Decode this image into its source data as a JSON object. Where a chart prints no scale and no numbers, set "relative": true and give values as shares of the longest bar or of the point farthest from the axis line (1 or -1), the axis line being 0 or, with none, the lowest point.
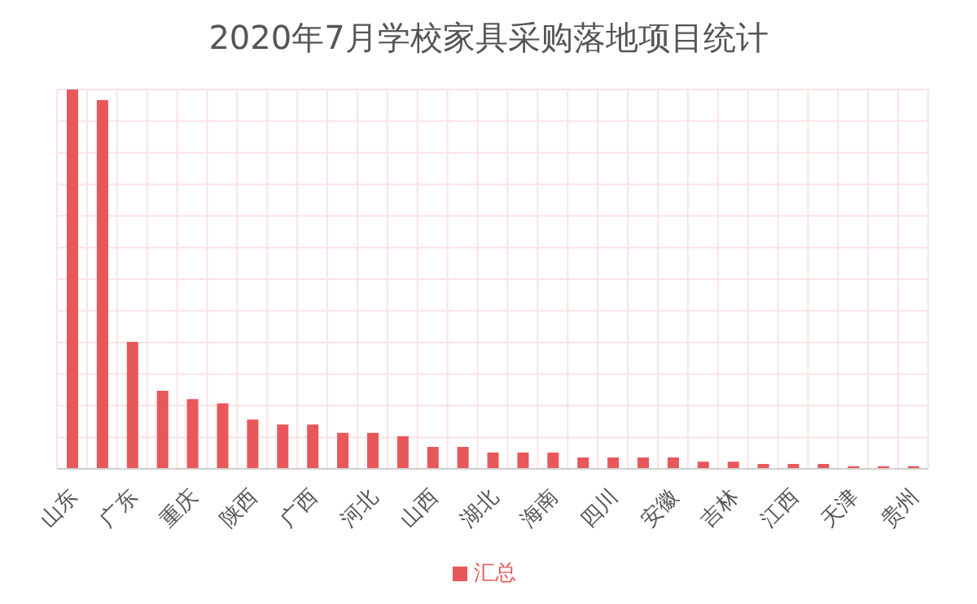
{
  "chart_data": {
    "type": "bar",
    "title": "2020年7月学校家具采购落地项目统计",
    "relative": true,
    "categories": [
      "山东",
      null,
      "广东",
      null,
      "重庆",
      null,
      "陕西",
      null,
      "广西",
      null,
      "河北",
      null,
      "山西",
      null,
      "湖北",
      null,
      "海南",
      null,
      "四川",
      null,
      "安徽",
      null,
      "吉林",
      null,
      "江西",
      null,
      "天津",
      null,
      "贵州"
    ],
    "series": [
      {
        "name": "汇总",
        "color": "#e8575a",
        "values": [
          1,
          0.972,
          0.335,
          0.206,
          0.184,
          0.173,
          0.13,
          0.117,
          0.117,
          0.095,
          0.095,
          0.086,
          0.058,
          0.058,
          0.043,
          0.043,
          0.043,
          0.03,
          0.03,
          0.03,
          0.03,
          0.019,
          0.019,
          0.013,
          0.013,
          0.013,
          0.007,
          0.007,
          0.007
        ]
      }
    ],
    "grid": true,
    "legend": "bottom"
  }
}
